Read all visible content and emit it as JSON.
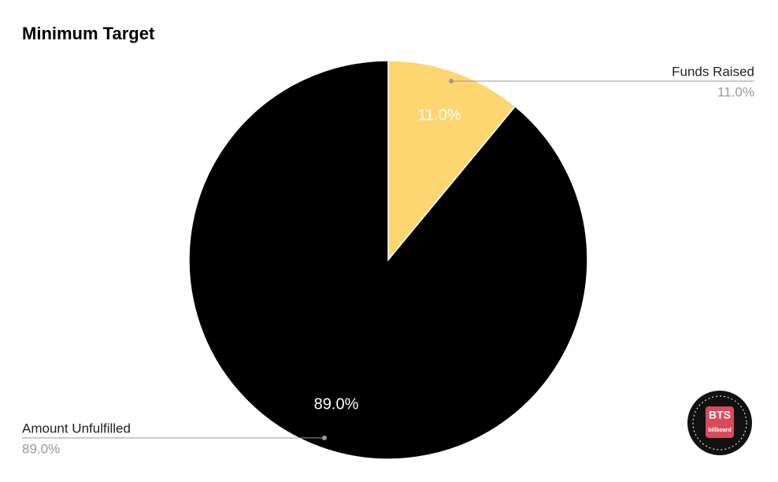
{
  "chart_data": {
    "type": "pie",
    "title": "Minimum Target",
    "categories": [
      "Funds Raised",
      "Amount Unfulfilled"
    ],
    "values": [
      11.0,
      89.0
    ],
    "value_labels": [
      "11.0%",
      "89.0%"
    ],
    "colors": [
      "#fdd672",
      "#000000"
    ]
  },
  "logo": {
    "text": "BTS",
    "subtext": "billboard"
  }
}
